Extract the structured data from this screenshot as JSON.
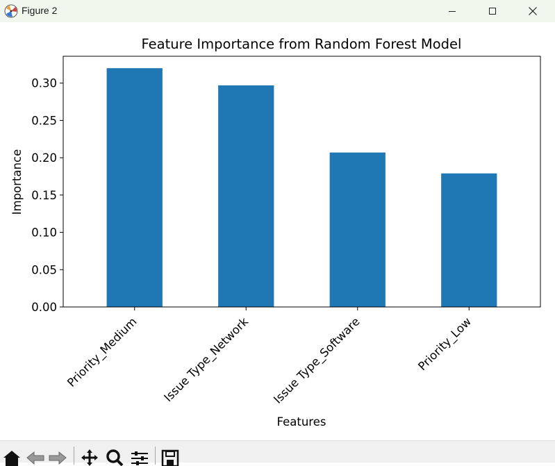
{
  "window": {
    "title": "Figure 2"
  },
  "toolbar": {
    "buttons": [
      "home-icon",
      "back-icon",
      "forward-icon",
      "pan-icon",
      "zoom-icon",
      "configure-subplots-icon",
      "save-icon"
    ]
  },
  "colors": {
    "bar": "#1f77b4",
    "titlebar": "#f2f7ee",
    "toolbar": "#f0f0f0"
  },
  "chart_data": {
    "type": "bar",
    "title": "Feature Importance from Random Forest Model",
    "xlabel": "Features",
    "ylabel": "Importance",
    "categories": [
      "Priority_Medium",
      "Issue Type_Network",
      "Issue Type_Software",
      "Priority_Low"
    ],
    "values": [
      0.32,
      0.297,
      0.207,
      0.179
    ],
    "ylim": [
      0,
      0.336
    ],
    "yticks": [
      0.0,
      0.05,
      0.1,
      0.15,
      0.2,
      0.25,
      0.3
    ],
    "ytick_labels": [
      "0.00",
      "0.05",
      "0.10",
      "0.15",
      "0.20",
      "0.25",
      "0.30"
    ],
    "grid": false,
    "legend": "none"
  }
}
